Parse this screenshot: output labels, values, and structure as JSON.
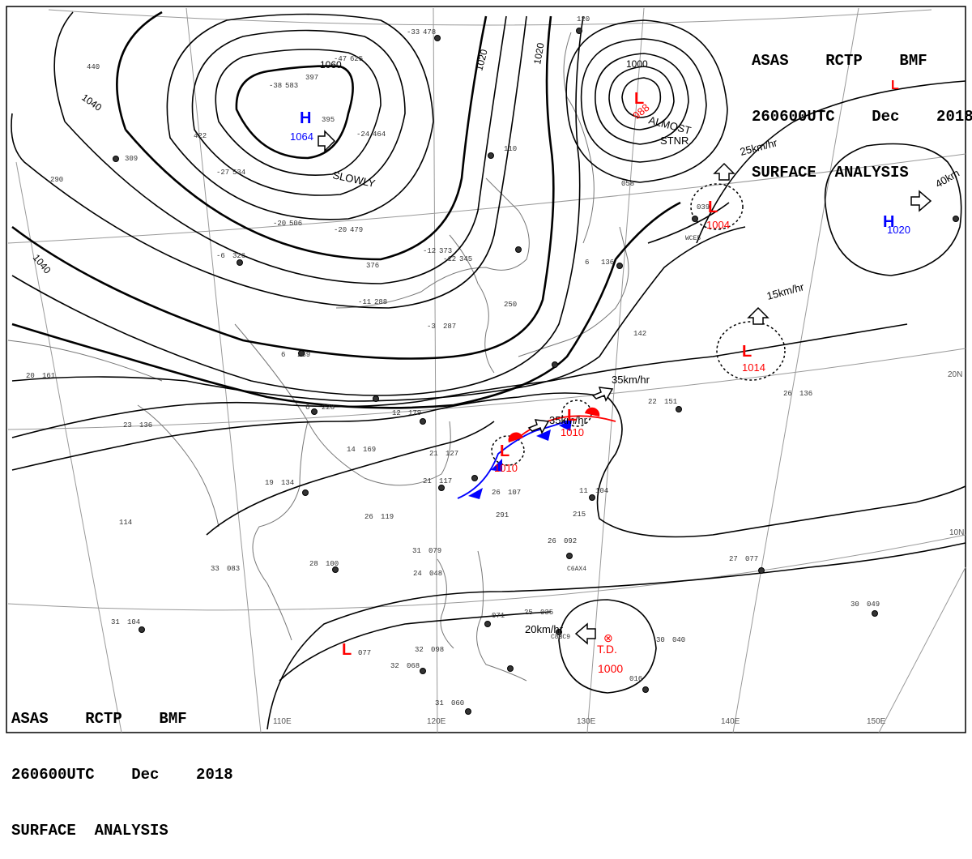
{
  "header": {
    "line1": "ASAS    RCTP    BMF",
    "line2": "260600UTC    Dec    2018",
    "line3": "SURFACE  ANALYSIS"
  },
  "colors": {
    "high": "#0000ff",
    "low": "#ff0000",
    "isobar": "#000000",
    "grid": "#999999",
    "coast": "#777777"
  },
  "grid_labels": {
    "lon": [
      "110E",
      "120E",
      "130E",
      "140E",
      "150E"
    ],
    "lat": [
      "20N",
      "10N"
    ]
  },
  "isobar_labels": [
    "1060",
    "1040",
    "1020",
    "1040",
    "1020",
    "1000"
  ],
  "pressure_systems": [
    {
      "type": "H",
      "value": "1064",
      "motion": "SLOWLY"
    },
    {
      "type": "L",
      "value": "988",
      "motion": "ALMOST STNR"
    },
    {
      "type": "L",
      "value": "1004",
      "motion": "25km/hr"
    },
    {
      "type": "H",
      "value": "1020",
      "motion": "40km"
    },
    {
      "type": "L",
      "value": "1014",
      "motion": "15km/hr"
    },
    {
      "type": "L",
      "value": "1010",
      "motion": "35km/hr"
    },
    {
      "type": "L",
      "value": "1010",
      "motion": "35km/hr"
    },
    {
      "type": "T.D.",
      "value": "1000",
      "motion": "20km/hr"
    },
    {
      "type": "L",
      "value": "",
      "motion": ""
    }
  ],
  "stations": [
    {
      "t": "-47",
      "p": "625"
    },
    {
      "t": "-33",
      "p": "478"
    },
    {
      "t": "-38",
      "p": "583"
    },
    {
      "t": "-24",
      "p": "464"
    },
    {
      "t": "-27",
      "p": "534"
    },
    {
      "t": "-20",
      "p": "506"
    },
    {
      "t": "-20",
      "p": "479"
    },
    {
      "t": "-12",
      "p": "373"
    },
    {
      "t": "-12",
      "p": "345"
    },
    {
      "t": "",
      "p": "376"
    },
    {
      "t": "-6",
      "p": "326"
    },
    {
      "t": "-11",
      "p": "288"
    },
    {
      "t": "-3",
      "p": "287"
    },
    {
      "t": "",
      "p": "250"
    },
    {
      "t": "6",
      "p": "239"
    },
    {
      "t": "6",
      "p": "228"
    },
    {
      "t": "12",
      "p": "179"
    },
    {
      "t": "14",
      "p": "169"
    },
    {
      "t": "19",
      "p": "134"
    },
    {
      "t": "26",
      "p": "119"
    },
    {
      "t": "20",
      "p": "161"
    },
    {
      "t": "23",
      "p": "136"
    },
    {
      "t": "28",
      "p": "100"
    },
    {
      "t": "33",
      "p": "083"
    },
    {
      "t": "31",
      "p": "104"
    },
    {
      "t": "31",
      "p": "079"
    },
    {
      "t": "24",
      "p": "048"
    },
    {
      "t": "25",
      "p": "035"
    },
    {
      "t": "30",
      "p": "040"
    },
    {
      "t": "27",
      "p": "077"
    },
    {
      "t": "30",
      "p": "049"
    },
    {
      "t": "26",
      "p": "136"
    },
    {
      "t": "22",
      "p": "151"
    },
    {
      "t": "26",
      "p": "092"
    },
    {
      "t": "",
      "p": "016"
    },
    {
      "t": "31",
      "p": "060"
    },
    {
      "t": "32",
      "p": "098"
    },
    {
      "t": "32",
      "p": "068"
    },
    {
      "t": "",
      "p": "071"
    },
    {
      "t": "",
      "p": "077"
    },
    {
      "t": "21",
      "p": "127"
    },
    {
      "t": "21",
      "p": "117"
    },
    {
      "t": "26",
      "p": "107"
    },
    {
      "t": "11",
      "p": "104"
    },
    {
      "t": "6",
      "p": "136"
    },
    {
      "t": "",
      "p": "142"
    },
    {
      "t": "",
      "p": "058"
    },
    {
      "t": "",
      "p": "039"
    },
    {
      "t": "",
      "p": "120"
    },
    {
      "t": "",
      "p": "110"
    },
    {
      "t": "",
      "p": "309"
    },
    {
      "t": "",
      "p": "290"
    },
    {
      "t": "",
      "p": "440"
    },
    {
      "t": "",
      "p": "422"
    },
    {
      "t": "",
      "p": "397"
    },
    {
      "t": "",
      "p": "395"
    },
    {
      "t": "",
      "p": "215"
    },
    {
      "t": "",
      "p": "291"
    },
    {
      "t": "",
      "p": "114"
    }
  ],
  "ship_codes": [
    "C6AX4",
    "C8BC9",
    "WCE5"
  ]
}
